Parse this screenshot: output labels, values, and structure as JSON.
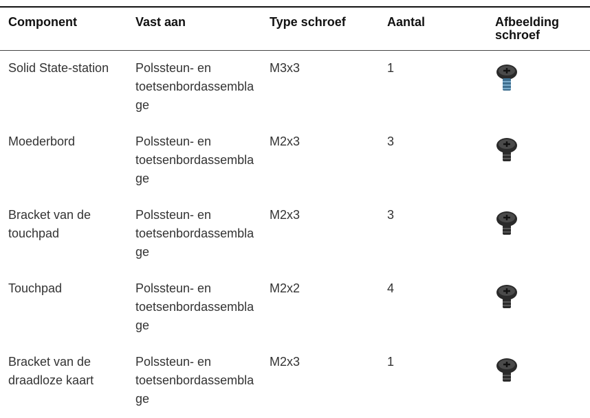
{
  "table": {
    "headers": [
      "Component",
      "Vast aan",
      "Type schroef",
      "Aantal",
      "Afbeelding schroef"
    ],
    "rows": [
      [
        "Solid State-station",
        "Polssteun- en toetsenbordassemblage",
        "M3x3",
        1
      ],
      [
        "Moederbord",
        "Polssteun- en toetsenbordassemblage",
        "M2x3",
        3
      ],
      [
        "Bracket van de touchpad",
        "Polssteun- en toetsenbordassemblage",
        "M2x3",
        3
      ],
      [
        "Touchpad",
        "Polssteun- en toetsenbordassemblage",
        "M2x2",
        4
      ],
      [
        "Bracket van de draadloze kaart",
        "Polssteun- en toetsenbordassemblage",
        "M2x3",
        1
      ]
    ]
  }
}
